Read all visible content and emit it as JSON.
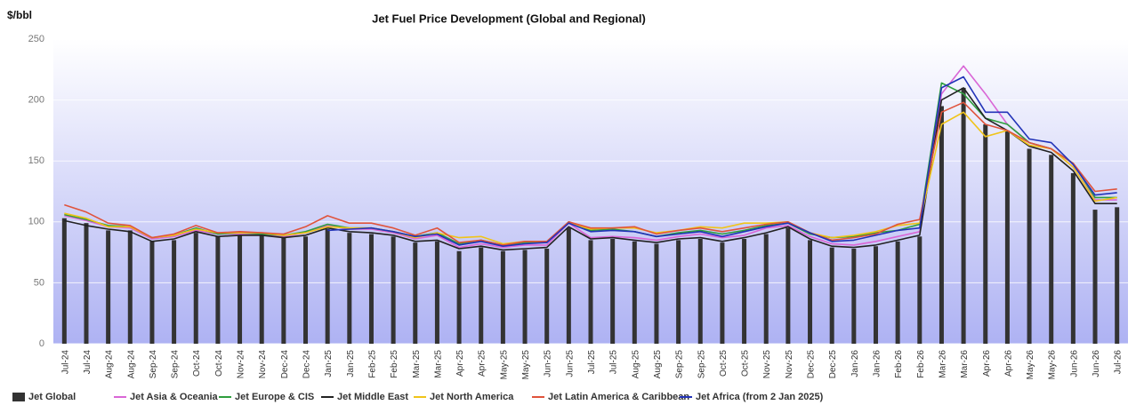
{
  "chart_data": {
    "type": "bar",
    "title": "Jet Fuel Price Development (Global and Regional)",
    "y_label": "$/bbl",
    "categories": [
      "Jul-24",
      "Jul-24",
      "Aug-24",
      "Aug-24",
      "Sep-24",
      "Sep-24",
      "Oct-24",
      "Oct-24",
      "Nov-24",
      "Nov-24",
      "Dec-24",
      "Dec-24",
      "Jan-25",
      "Jan-25",
      "Feb-25",
      "Feb-25",
      "Mar-25",
      "Mar-25",
      "Apr-25",
      "Apr-25",
      "May-25",
      "May-25",
      "Jun-25",
      "Jun-25",
      "Jul-25",
      "Jul-25",
      "Aug-25",
      "Aug-25",
      "Sep-25",
      "Sep-25",
      "Oct-25",
      "Oct-25",
      "Nov-25",
      "Nov-25",
      "Dec-25",
      "Dec-25",
      "Jan-26",
      "Jan-26",
      "Feb-26",
      "Feb-26",
      "Mar-26",
      "Mar-26",
      "Apr-26",
      "Apr-26",
      "May-26",
      "May-26",
      "Jun-26",
      "Jun-26",
      "Jul-26"
    ],
    "series": [
      {
        "name": "Jet Global",
        "type": "bar",
        "color": "#333333",
        "values": [
          103,
          99,
          93,
          93,
          84,
          85,
          91,
          88,
          89,
          89,
          87,
          88,
          94,
          91,
          90,
          88,
          83,
          84,
          76,
          79,
          76,
          77,
          78,
          95,
          85,
          86,
          84,
          82,
          85,
          86,
          83,
          86,
          90,
          95,
          85,
          79,
          78,
          80,
          84,
          88,
          195,
          210,
          180,
          175,
          160,
          155,
          140,
          110,
          112
        ]
      },
      {
        "name": "Jet Asia & Oceania",
        "type": "line",
        "color": "#d966d6",
        "values": [
          105,
          101,
          96,
          95,
          86,
          88,
          93,
          90,
          90,
          90,
          88,
          91,
          97,
          94,
          94,
          91,
          86,
          89,
          79,
          82,
          79,
          81,
          81,
          99,
          87,
          88,
          87,
          85,
          88,
          90,
          87,
          89,
          95,
          97,
          88,
          82,
          81,
          84,
          88,
          92,
          205,
          228,
          205,
          180,
          165,
          160,
          145,
          118,
          118
        ]
      },
      {
        "name": "Jet Europe & CIS",
        "type": "line",
        "color": "#2e9e3e",
        "values": [
          106,
          102,
          97,
          96,
          87,
          89,
          95,
          90,
          91,
          90,
          89,
          92,
          98,
          95,
          95,
          92,
          88,
          91,
          82,
          85,
          81,
          83,
          83,
          100,
          93,
          94,
          92,
          88,
          91,
          93,
          90,
          93,
          97,
          99,
          90,
          87,
          88,
          91,
          93,
          98,
          214,
          205,
          185,
          180,
          165,
          160,
          148,
          120,
          120
        ]
      },
      {
        "name": "Jet Middle East",
        "type": "line",
        "color": "#222222",
        "values": [
          101,
          97,
          94,
          92,
          84,
          86,
          92,
          88,
          89,
          89,
          87,
          89,
          95,
          92,
          91,
          89,
          84,
          85,
          78,
          80,
          77,
          78,
          79,
          96,
          86,
          87,
          85,
          83,
          86,
          87,
          84,
          87,
          91,
          96,
          86,
          80,
          79,
          81,
          85,
          89,
          200,
          210,
          185,
          175,
          162,
          157,
          142,
          115,
          115
        ]
      },
      {
        "name": "Jet North America",
        "type": "line",
        "color": "#f0c419",
        "values": [
          107,
          103,
          96,
          96,
          87,
          89,
          94,
          91,
          91,
          91,
          89,
          91,
          96,
          95,
          95,
          92,
          87,
          91,
          87,
          88,
          82,
          84,
          84,
          99,
          94,
          95,
          95,
          91,
          93,
          96,
          95,
          99,
          99,
          100,
          91,
          87,
          89,
          92,
          97,
          99,
          180,
          190,
          170,
          175,
          163,
          160,
          145,
          117,
          120
        ]
      },
      {
        "name": "Jet Latin America & Caribbean",
        "type": "line",
        "color": "#e0533b",
        "values": [
          114,
          108,
          99,
          97,
          87,
          90,
          97,
          91,
          92,
          91,
          90,
          96,
          105,
          99,
          99,
          95,
          89,
          95,
          83,
          85,
          81,
          84,
          84,
          100,
          95,
          95,
          96,
          90,
          93,
          95,
          92,
          95,
          98,
          100,
          91,
          85,
          87,
          90,
          98,
          102,
          190,
          198,
          180,
          175,
          165,
          160,
          148,
          125,
          127
        ]
      },
      {
        "name": "Jet Africa (from 2 Jan 2025)",
        "type": "line",
        "color": "#2233b8",
        "values": [
          null,
          null,
          null,
          null,
          null,
          null,
          null,
          null,
          null,
          null,
          null,
          null,
          93,
          94,
          95,
          92,
          88,
          90,
          81,
          84,
          80,
          82,
          83,
          99,
          92,
          93,
          92,
          88,
          90,
          92,
          88,
          92,
          96,
          99,
          91,
          84,
          85,
          89,
          93,
          95,
          210,
          219,
          190,
          190,
          168,
          165,
          147,
          122,
          124
        ]
      }
    ],
    "ylim": [
      0,
      250
    ],
    "yticks": [
      0,
      50,
      100,
      150,
      200,
      250
    ],
    "grid": true
  }
}
